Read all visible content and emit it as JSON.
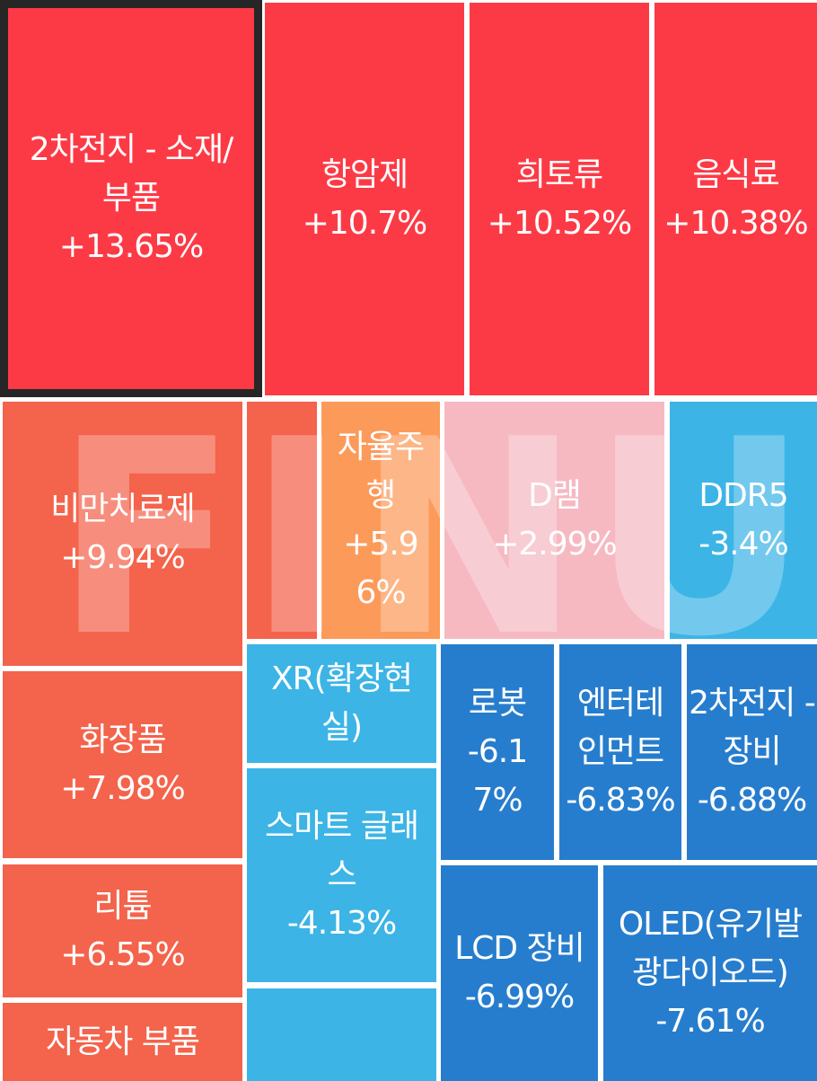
{
  "watermark": "FINUP",
  "colors": {
    "strong_up": "#fc3a46",
    "up": "#f4634b",
    "mild_up": "#fc9a5a",
    "flat": "#f6b9c2",
    "mild_down": "#3cb4e6",
    "down": "#277dcd",
    "selected_border": "#262626"
  },
  "chart_data": {
    "type": "treemap",
    "items": [
      {
        "name": "2차전지 - 소재/부품",
        "lines": [
          "2차전지 - 소재/",
          "부품",
          "+13.65%"
        ],
        "value": 13.65,
        "tone": "strong_up",
        "selected": true
      },
      {
        "name": "항암제",
        "lines": [
          "항암제",
          "+10.7%"
        ],
        "value": 10.7,
        "tone": "strong_up"
      },
      {
        "name": "희토류",
        "lines": [
          "희토류",
          "+10.52%"
        ],
        "value": 10.52,
        "tone": "strong_up"
      },
      {
        "name": "음식료",
        "lines": [
          "음식료",
          "+10.38%"
        ],
        "value": 10.38,
        "tone": "strong_up"
      },
      {
        "name": "비만치료제",
        "lines": [
          "비만치료제",
          "+9.94%"
        ],
        "value": 9.94,
        "tone": "up"
      },
      {
        "name": "",
        "lines": [],
        "value": null,
        "tone": "up"
      },
      {
        "name": "자율주행",
        "lines": [
          "자율주",
          "행",
          "+5.9",
          "6%"
        ],
        "value": 5.96,
        "tone": "mild_up"
      },
      {
        "name": "D램",
        "lines": [
          "D램",
          "+2.99%"
        ],
        "value": 2.99,
        "tone": "flat"
      },
      {
        "name": "DDR5",
        "lines": [
          "DDR5",
          "-3.4%"
        ],
        "value": -3.4,
        "tone": "mild_down"
      },
      {
        "name": "화장품",
        "lines": [
          "화장품",
          "+7.98%"
        ],
        "value": 7.98,
        "tone": "up"
      },
      {
        "name": "XR(확장현실)",
        "lines": [
          "XR(확장현",
          "실)"
        ],
        "value": null,
        "tone": "mild_down"
      },
      {
        "name": "로봇",
        "lines": [
          "로봇",
          "-6.1",
          "7%"
        ],
        "value": -6.17,
        "tone": "down"
      },
      {
        "name": "엔터테인먼트",
        "lines": [
          "엔터테",
          "인먼트",
          "-6.83%"
        ],
        "value": -6.83,
        "tone": "down"
      },
      {
        "name": "2차전지 - 장비",
        "lines": [
          "2차전지 -",
          "장비",
          "-6.88%"
        ],
        "value": -6.88,
        "tone": "down"
      },
      {
        "name": "스마트 글래스",
        "lines": [
          "스마트 글래",
          "스",
          "-4.13%"
        ],
        "value": -4.13,
        "tone": "mild_down"
      },
      {
        "name": "리튬",
        "lines": [
          "리튬",
          "+6.55%"
        ],
        "value": 6.55,
        "tone": "up"
      },
      {
        "name": "LCD 장비",
        "lines": [
          "LCD 장비",
          "-6.99%"
        ],
        "value": -6.99,
        "tone": "down"
      },
      {
        "name": "OLED(유기발광다이오드)",
        "lines": [
          "OLED(유기발",
          "광다이오드)",
          "-7.61%"
        ],
        "value": -7.61,
        "tone": "down"
      },
      {
        "name": "자동차 부품",
        "lines": [
          "자동차 부품"
        ],
        "value": null,
        "tone": "up"
      },
      {
        "name": "",
        "lines": [],
        "value": null,
        "tone": "mild_down"
      }
    ]
  }
}
